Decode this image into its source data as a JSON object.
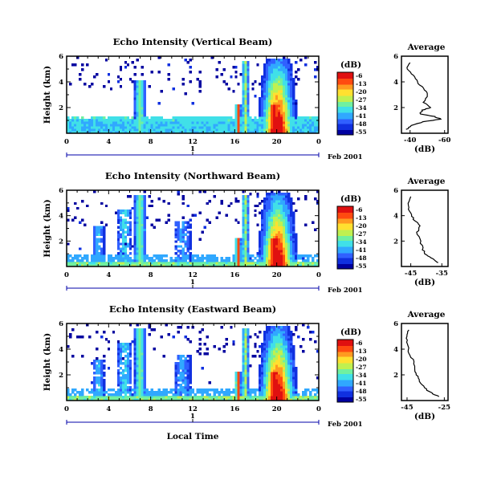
{
  "figure": {
    "xlabel": "Local Time",
    "date_label": "Feb 2001",
    "day_label": "1",
    "colorbar_unit": "(dB)",
    "colorbar_ticks": [
      "-6",
      "-13",
      "-20",
      "-27",
      "-34",
      "-41",
      "-48",
      "-55"
    ],
    "colormap": [
      "#0000a0",
      "#1030e0",
      "#3060ff",
      "#30a8ff",
      "#40e0e8",
      "#70f0a0",
      "#c0f050",
      "#ffe030",
      "#ff9a20",
      "#ff4a10",
      "#e01010"
    ],
    "avg_title": "Average",
    "avg_xlabel": "(dB)"
  },
  "chart_data": [
    {
      "type": "heatmap",
      "title": "Echo Intensity (Vertical Beam)",
      "xlabel": "",
      "ylabel": "Height (km)",
      "xlim": [
        0,
        24
      ],
      "ylim": [
        0,
        6
      ],
      "x_ticks": [
        "0",
        "4",
        "8",
        "12",
        "16",
        "20",
        "0"
      ],
      "y_ticks": [
        "2",
        "4",
        "6"
      ],
      "value_range_db": [
        -55,
        -6
      ],
      "avg": {
        "title": "Average",
        "xlabel": "(dB)",
        "x_ticks": [
          "-40",
          "-60"
        ],
        "y_ticks": [
          "2",
          "4",
          "6"
        ],
        "profile": [
          [
            -38,
            0.3
          ],
          [
            -41,
            0.6
          ],
          [
            -48,
            0.9
          ],
          [
            -58,
            1.1
          ],
          [
            -54,
            1.3
          ],
          [
            -46,
            1.5
          ],
          [
            -47,
            1.8
          ],
          [
            -52,
            2.0
          ],
          [
            -48,
            2.4
          ],
          [
            -50,
            3.0
          ],
          [
            -48,
            3.5
          ],
          [
            -44,
            4.0
          ],
          [
            -42,
            4.5
          ],
          [
            -38,
            5.0
          ],
          [
            -40,
            5.5
          ]
        ]
      }
    },
    {
      "type": "heatmap",
      "title": "Echo Intensity (Northward Beam)",
      "xlabel": "",
      "ylabel": "Height (km)",
      "xlim": [
        0,
        24
      ],
      "ylim": [
        0,
        6
      ],
      "x_ticks": [
        "0",
        "4",
        "8",
        "12",
        "16",
        "20",
        "0"
      ],
      "y_ticks": [
        "2",
        "4",
        "6"
      ],
      "value_range_db": [
        -55,
        -6
      ],
      "avg": {
        "title": "Average",
        "xlabel": "(dB)",
        "x_ticks": [
          "-45",
          "-35"
        ],
        "y_ticks": [
          "2",
          "4",
          "6"
        ],
        "profile": [
          [
            -36,
            0.3
          ],
          [
            -38,
            0.6
          ],
          [
            -40,
            0.9
          ],
          [
            -41,
            1.3
          ],
          [
            -42,
            2.0
          ],
          [
            -43,
            2.7
          ],
          [
            -42,
            3.2
          ],
          [
            -44,
            3.7
          ],
          [
            -45,
            4.2
          ],
          [
            -46,
            4.8
          ],
          [
            -45,
            5.5
          ]
        ]
      }
    },
    {
      "type": "heatmap",
      "title": "Echo Intensity (Eastward Beam)",
      "xlabel": "Local Time",
      "ylabel": "Height (km)",
      "xlim": [
        0,
        24
      ],
      "ylim": [
        0,
        6
      ],
      "x_ticks": [
        "0",
        "4",
        "8",
        "12",
        "16",
        "20",
        "0"
      ],
      "y_ticks": [
        "2",
        "4",
        "6"
      ],
      "value_range_db": [
        -55,
        -6
      ],
      "avg": {
        "title": "Average",
        "xlabel": "(dB)",
        "x_ticks": [
          "-45",
          "-25"
        ],
        "y_ticks": [
          "2",
          "4",
          "6"
        ],
        "profile": [
          [
            -28,
            0.3
          ],
          [
            -32,
            0.6
          ],
          [
            -36,
            1.0
          ],
          [
            -38,
            1.5
          ],
          [
            -40,
            2.0
          ],
          [
            -41,
            2.5
          ],
          [
            -42,
            3.2
          ],
          [
            -44,
            3.8
          ],
          [
            -45,
            4.4
          ],
          [
            -45,
            5.0
          ],
          [
            -44,
            5.5
          ]
        ]
      }
    }
  ]
}
